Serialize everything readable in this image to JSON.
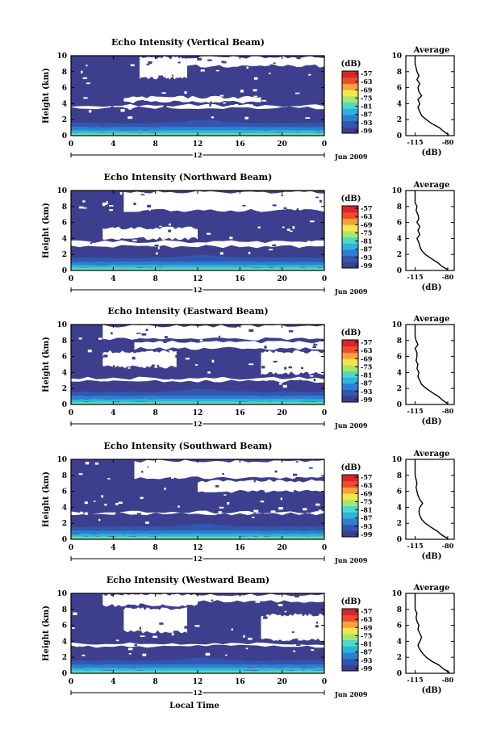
{
  "colors": {
    "background": "#ffffff",
    "echo_floor": "#3d3f8e",
    "colormap": [
      "#3d3f8e",
      "#3157b0",
      "#2f7fd0",
      "#2fb2dc",
      "#4fd8c8",
      "#a7e66a",
      "#f5e64a",
      "#f7a23a",
      "#ef4b2a",
      "#d8262a"
    ]
  },
  "chart_data": [
    {
      "type": "heatmap",
      "title": "Echo Intensity (Vertical Beam)",
      "ylabel": "Height (km)",
      "xlabel": "",
      "x_ticks": [
        "0",
        "4",
        "8",
        "12",
        "16",
        "20",
        "0"
      ],
      "y_ticks": [
        "0",
        "2",
        "4",
        "6",
        "8",
        "10"
      ],
      "xlim": [
        0,
        24
      ],
      "ylim": [
        0,
        10
      ],
      "date_label": "Jun 2009",
      "date_day": "12",
      "colorbar": {
        "unit": "(dB)",
        "ticks": [
          "-57",
          "-63",
          "-69",
          "-75",
          "-81",
          "-87",
          "-93",
          "-99"
        ]
      },
      "average_profile": {
        "title": "Average",
        "xlabel": "(dB)",
        "x_ticks": [
          "-115",
          "-80"
        ],
        "y_ticks": [
          "0",
          "2",
          "4",
          "6",
          "8",
          "10"
        ],
        "height_km": [
          0.1,
          0.5,
          1.0,
          1.5,
          2.0,
          2.5,
          3.0,
          3.5,
          4.0,
          4.5,
          5.0,
          5.5,
          6.0,
          6.5,
          7.0,
          7.5,
          8.0,
          8.5,
          9.0,
          9.5
        ],
        "intensity_db": [
          -79,
          -84,
          -89,
          -97,
          -103,
          -108,
          -110,
          -112,
          -110,
          -112,
          -108,
          -111,
          -112,
          -110,
          -113,
          -111,
          -113,
          -114,
          -115,
          -115
        ]
      },
      "clear_regions_km": [
        {
          "t": [
            6.5,
            11
          ],
          "h": [
            7,
            10
          ]
        },
        {
          "t": [
            11,
            24
          ],
          "h": [
            8.5,
            10
          ]
        },
        {
          "t": [
            0,
            24
          ],
          "h": [
            3.3,
            4.0
          ]
        },
        {
          "t": [
            5,
            18
          ],
          "h": [
            4.0,
            5.0
          ]
        }
      ]
    },
    {
      "type": "heatmap",
      "title": "Echo Intensity (Northward Beam)",
      "ylabel": "Height (km)",
      "xlabel": "",
      "x_ticks": [
        "0",
        "4",
        "8",
        "12",
        "16",
        "20",
        "0"
      ],
      "y_ticks": [
        "0",
        "2",
        "4",
        "6",
        "8",
        "10"
      ],
      "xlim": [
        0,
        24
      ],
      "ylim": [
        0,
        10
      ],
      "date_label": "Jun 2009",
      "date_day": "12",
      "colorbar": {
        "unit": "(dB)",
        "ticks": [
          "-57",
          "-63",
          "-69",
          "-75",
          "-81",
          "-87",
          "-93",
          "-99"
        ]
      },
      "average_profile": {
        "title": "Average",
        "xlabel": "(dB)",
        "x_ticks": [
          "-115",
          "-80"
        ],
        "y_ticks": [
          "0",
          "2",
          "4",
          "6",
          "8",
          "10"
        ],
        "height_km": [
          0.1,
          0.5,
          1.0,
          1.5,
          2.0,
          2.5,
          3.0,
          3.5,
          4.0,
          4.5,
          5.0,
          5.5,
          6.0,
          6.5,
          7.0,
          7.5,
          8.0,
          8.5,
          9.0,
          9.5
        ],
        "intensity_db": [
          -80,
          -86,
          -91,
          -98,
          -104,
          -108,
          -110,
          -111,
          -113,
          -110,
          -112,
          -110,
          -113,
          -111,
          -112,
          -114,
          -113,
          -115,
          -115,
          -115
        ]
      },
      "clear_regions_km": [
        {
          "t": [
            5,
            24
          ],
          "h": [
            7.3,
            10
          ]
        },
        {
          "t": [
            0,
            24
          ],
          "h": [
            2.8,
            3.8
          ]
        },
        {
          "t": [
            3,
            12
          ],
          "h": [
            3.8,
            5.5
          ]
        }
      ]
    },
    {
      "type": "heatmap",
      "title": "Echo Intensity (Eastward Beam)",
      "ylabel": "Height (km)",
      "xlabel": "",
      "x_ticks": [
        "0",
        "4",
        "8",
        "12",
        "16",
        "20",
        "0"
      ],
      "y_ticks": [
        "0",
        "2",
        "4",
        "6",
        "8",
        "10"
      ],
      "xlim": [
        0,
        24
      ],
      "ylim": [
        0,
        10
      ],
      "date_label": "Jun 2009",
      "date_day": "12",
      "colorbar": {
        "unit": "(dB)",
        "ticks": [
          "-57",
          "-63",
          "-69",
          "-75",
          "-81",
          "-87",
          "-93",
          "-99"
        ]
      },
      "average_profile": {
        "title": "Average",
        "xlabel": "(dB)",
        "x_ticks": [
          "-115",
          "-80"
        ],
        "y_ticks": [
          "0",
          "2",
          "4",
          "6",
          "8",
          "10"
        ],
        "height_km": [
          0.1,
          0.5,
          1.0,
          1.5,
          2.0,
          2.5,
          3.0,
          3.5,
          4.0,
          4.5,
          5.0,
          5.5,
          6.0,
          6.5,
          7.0,
          7.5,
          8.0,
          8.5,
          9.0,
          9.5
        ],
        "intensity_db": [
          -80,
          -85,
          -90,
          -97,
          -103,
          -108,
          -110,
          -112,
          -111,
          -113,
          -112,
          -114,
          -113,
          -113,
          -115,
          -112,
          -114,
          -115,
          -115,
          -115
        ]
      },
      "clear_regions_km": [
        {
          "t": [
            3,
            24
          ],
          "h": [
            8.0,
            10
          ]
        },
        {
          "t": [
            6,
            24
          ],
          "h": [
            6.8,
            8
          ]
        },
        {
          "t": [
            3,
            10
          ],
          "h": [
            4.5,
            6.8
          ]
        },
        {
          "t": [
            18,
            24
          ],
          "h": [
            3.7,
            6.8
          ]
        },
        {
          "t": [
            0,
            24
          ],
          "h": [
            2.7,
            3.5
          ]
        }
      ]
    },
    {
      "type": "heatmap",
      "title": "Echo Intensity (Southward Beam)",
      "ylabel": "Height (km)",
      "xlabel": "",
      "x_ticks": [
        "0",
        "4",
        "8",
        "12",
        "16",
        "20",
        "0"
      ],
      "y_ticks": [
        "0",
        "2",
        "4",
        "6",
        "8",
        "10"
      ],
      "xlim": [
        0,
        24
      ],
      "ylim": [
        0,
        10
      ],
      "date_label": "Jun 2009",
      "date_day": "12",
      "colorbar": {
        "unit": "(dB)",
        "ticks": [
          "-57",
          "-63",
          "-69",
          "-75",
          "-81",
          "-87",
          "-93",
          "-99"
        ]
      },
      "average_profile": {
        "title": "Average",
        "xlabel": "(dB)",
        "x_ticks": [
          "-115",
          "-80"
        ],
        "y_ticks": [
          "0",
          "2",
          "4",
          "6",
          "8",
          "10"
        ],
        "height_km": [
          0.1,
          0.5,
          1.0,
          1.5,
          2.0,
          2.5,
          3.0,
          3.5,
          4.0,
          4.5,
          5.0,
          5.5,
          6.0,
          6.5,
          7.0,
          7.5,
          8.0,
          8.5,
          9.0,
          9.5
        ],
        "intensity_db": [
          -80,
          -86,
          -91,
          -98,
          -104,
          -108,
          -110,
          -111,
          -110,
          -107,
          -110,
          -112,
          -113,
          -114,
          -113,
          -114,
          -115,
          -115,
          -115,
          -115
        ]
      },
      "clear_regions_km": [
        {
          "t": [
            6,
            24
          ],
          "h": [
            7.5,
            10
          ]
        },
        {
          "t": [
            12,
            24
          ],
          "h": [
            5.8,
            7.5
          ]
        },
        {
          "t": [
            0,
            24
          ],
          "h": [
            3.0,
            3.6
          ]
        }
      ]
    },
    {
      "type": "heatmap",
      "title": "Echo Intensity (Westward Beam)",
      "ylabel": "Height (km)",
      "xlabel": "Local Time",
      "x_ticks": [
        "0",
        "4",
        "8",
        "12",
        "16",
        "20",
        "0"
      ],
      "y_ticks": [
        "0",
        "2",
        "4",
        "6",
        "8",
        "10"
      ],
      "xlim": [
        0,
        24
      ],
      "ylim": [
        0,
        10
      ],
      "date_label": "Jun 2009",
      "date_day": "12",
      "colorbar": {
        "unit": "(dB)",
        "ticks": [
          "-57",
          "-63",
          "-69",
          "-75",
          "-81",
          "-87",
          "-93",
          "-99"
        ]
      },
      "average_profile": {
        "title": "Average",
        "xlabel": "(dB)",
        "x_ticks": [
          "-115",
          "-80"
        ],
        "y_ticks": [
          "0",
          "2",
          "4",
          "6",
          "8",
          "10"
        ],
        "height_km": [
          0.1,
          0.5,
          1.0,
          1.5,
          2.0,
          2.5,
          3.0,
          3.5,
          4.0,
          4.5,
          5.0,
          5.5,
          6.0,
          6.5,
          7.0,
          7.5,
          8.0,
          8.5,
          9.0,
          9.5
        ],
        "intensity_db": [
          -78,
          -84,
          -89,
          -97,
          -103,
          -107,
          -110,
          -112,
          -110,
          -108,
          -110,
          -112,
          -111,
          -113,
          -114,
          -113,
          -115,
          -115,
          -115,
          -115
        ]
      },
      "clear_regions_km": [
        {
          "t": [
            3,
            12
          ],
          "h": [
            8.3,
            10
          ]
        },
        {
          "t": [
            5,
            24
          ],
          "h": [
            8.8,
            10
          ]
        },
        {
          "t": [
            5,
            11
          ],
          "h": [
            5.0,
            8.3
          ]
        },
        {
          "t": [
            18,
            24
          ],
          "h": [
            4.0,
            7.5
          ]
        },
        {
          "t": [
            0,
            24
          ],
          "h": [
            3.2,
            3.9
          ]
        }
      ]
    }
  ]
}
